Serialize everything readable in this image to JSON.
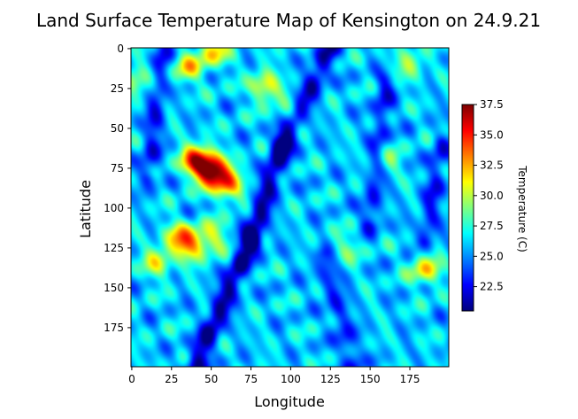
{
  "chart_data": {
    "type": "heatmap",
    "title": "Land Surface Temperature Map of Kensington on 24.9.21",
    "xlabel": "Longitude",
    "ylabel": "Latitude",
    "colorbar_label": "Temperature (C)",
    "colormap": "jet",
    "x_range": [
      0,
      199
    ],
    "y_range": [
      0,
      199
    ],
    "y_axis_inverted": true,
    "x_ticks": [
      "0",
      "25",
      "50",
      "75",
      "100",
      "125",
      "150",
      "175"
    ],
    "y_ticks": [
      "0",
      "25",
      "50",
      "75",
      "100",
      "125",
      "150",
      "175"
    ],
    "colorbar_range": [
      20.5,
      37.5
    ],
    "colorbar_ticks": [
      "22.5",
      "25.0",
      "27.5",
      "30.0",
      "32.5",
      "35.0",
      "37.5"
    ],
    "grid": false,
    "base_temperature": 26.0,
    "hot_spots": [
      {
        "x": 50,
        "y": 76,
        "temperature": 37.5
      },
      {
        "x": 40,
        "y": 70,
        "temperature": 34.5
      },
      {
        "x": 60,
        "y": 85,
        "temperature": 33.5
      },
      {
        "x": 38,
        "y": 124,
        "temperature": 31.5
      },
      {
        "x": 30,
        "y": 118,
        "temperature": 31.5
      },
      {
        "x": 52,
        "y": 118,
        "temperature": 30.0
      },
      {
        "x": 84,
        "y": 24,
        "temperature": 31.5
      },
      {
        "x": 35,
        "y": 12,
        "temperature": 31.0
      },
      {
        "x": 52,
        "y": 2,
        "temperature": 31.5
      },
      {
        "x": 2,
        "y": 20,
        "temperature": 30.0
      },
      {
        "x": 16,
        "y": 134,
        "temperature": 30.5
      },
      {
        "x": 185,
        "y": 139,
        "temperature": 31.5
      },
      {
        "x": 175,
        "y": 10,
        "temperature": 29.5
      },
      {
        "x": 160,
        "y": 70,
        "temperature": 29.0
      },
      {
        "x": 135,
        "y": 125,
        "temperature": 28.5
      },
      {
        "x": 100,
        "y": 40,
        "temperature": 28.0
      }
    ],
    "cool_channels": [
      {
        "from": [
          125,
          0
        ],
        "to": [
          95,
          60
        ],
        "temperature": 21.5
      },
      {
        "from": [
          95,
          60
        ],
        "to": [
          75,
          120
        ],
        "temperature": 21.0
      },
      {
        "from": [
          75,
          120
        ],
        "to": [
          40,
          199
        ],
        "temperature": 20.8
      },
      {
        "from": [
          20,
          0
        ],
        "to": [
          10,
          80
        ],
        "temperature": 23.0
      },
      {
        "from": [
          160,
          20
        ],
        "to": [
          150,
          110
        ],
        "temperature": 23.0
      },
      {
        "from": [
          195,
          60
        ],
        "to": [
          185,
          120
        ],
        "temperature": 23.0
      },
      {
        "from": [
          120,
          130
        ],
        "to": [
          140,
          199
        ],
        "temperature": 23.0
      }
    ]
  }
}
